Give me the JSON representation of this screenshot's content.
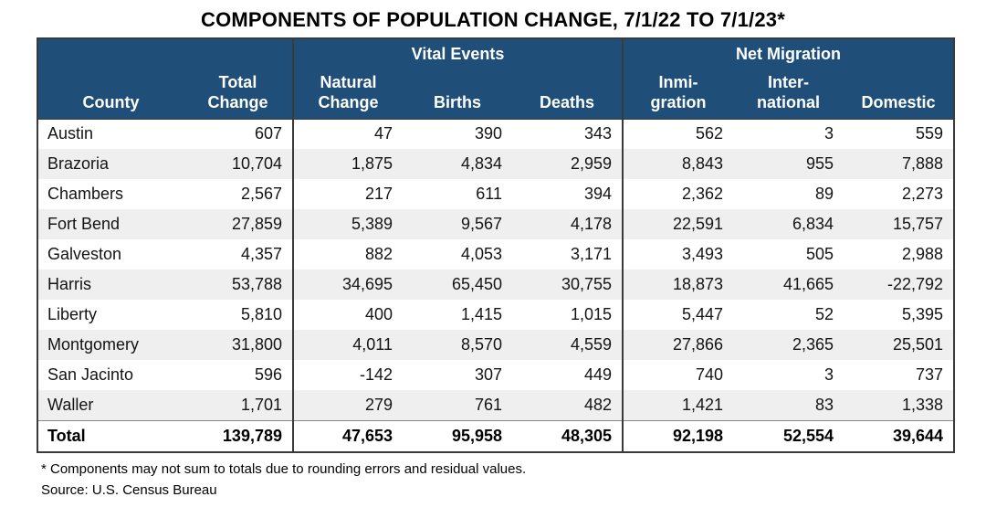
{
  "title": "COMPONENTS OF POPULATION CHANGE, 7/1/22 TO 7/1/23*",
  "colors": {
    "header_bg": "#1F4E79",
    "header_text": "#FFFFFF",
    "stripe_row": "#EFEFEF",
    "border": "#3A3A3A"
  },
  "table": {
    "group_headers": [
      "",
      "Vital Events",
      "Net Migration"
    ],
    "columns": [
      "County",
      "Total\nChange",
      "Natural\nChange",
      "Births",
      "Deaths",
      "Inmi-\ngration",
      "Inter-\nnational",
      "Domestic"
    ],
    "rows": [
      {
        "county": "Austin",
        "values": [
          "607",
          "47",
          "390",
          "343",
          "562",
          "3",
          "559"
        ]
      },
      {
        "county": "Brazoria",
        "values": [
          "10,704",
          "1,875",
          "4,834",
          "2,959",
          "8,843",
          "955",
          "7,888"
        ]
      },
      {
        "county": "Chambers",
        "values": [
          "2,567",
          "217",
          "611",
          "394",
          "2,362",
          "89",
          "2,273"
        ]
      },
      {
        "county": "Fort Bend",
        "values": [
          "27,859",
          "5,389",
          "9,567",
          "4,178",
          "22,591",
          "6,834",
          "15,757"
        ]
      },
      {
        "county": "Galveston",
        "values": [
          "4,357",
          "882",
          "4,053",
          "3,171",
          "3,493",
          "505",
          "2,988"
        ]
      },
      {
        "county": "Harris",
        "values": [
          "53,788",
          "34,695",
          "65,450",
          "30,755",
          "18,873",
          "41,665",
          "-22,792"
        ]
      },
      {
        "county": "Liberty",
        "values": [
          "5,810",
          "400",
          "1,415",
          "1,015",
          "5,447",
          "52",
          "5,395"
        ]
      },
      {
        "county": "Montgomery",
        "values": [
          "31,800",
          "4,011",
          "8,570",
          "4,559",
          "27,866",
          "2,365",
          "25,501"
        ]
      },
      {
        "county": "San Jacinto",
        "values": [
          "596",
          "-142",
          "307",
          "449",
          "740",
          "3",
          "737"
        ]
      },
      {
        "county": "Waller",
        "values": [
          "1,701",
          "279",
          "761",
          "482",
          "1,421",
          "83",
          "1,338"
        ]
      }
    ],
    "total_row": {
      "county": "Total",
      "values": [
        "139,789",
        "47,653",
        "95,958",
        "48,305",
        "92,198",
        "52,554",
        "39,644"
      ]
    }
  },
  "footnotes": [
    "* Components may not sum to totals due to rounding errors and residual values.",
    "Source: U.S. Census Bureau"
  ],
  "chart_data": {
    "type": "table",
    "title": "COMPONENTS OF POPULATION CHANGE, 7/1/22 TO 7/1/23*",
    "row_header": "County",
    "categories": [
      "Austin",
      "Brazoria",
      "Chambers",
      "Fort Bend",
      "Galveston",
      "Harris",
      "Liberty",
      "Montgomery",
      "San Jacinto",
      "Waller",
      "Total"
    ],
    "series": [
      {
        "name": "Total Change",
        "group": "",
        "values": [
          607,
          10704,
          2567,
          27859,
          4357,
          53788,
          5810,
          31800,
          596,
          1701,
          139789
        ]
      },
      {
        "name": "Natural Change",
        "group": "Vital Events",
        "values": [
          47,
          1875,
          217,
          5389,
          882,
          34695,
          400,
          4011,
          -142,
          279,
          47653
        ]
      },
      {
        "name": "Births",
        "group": "Vital Events",
        "values": [
          390,
          4834,
          611,
          9567,
          4053,
          65450,
          1415,
          8570,
          307,
          761,
          95958
        ]
      },
      {
        "name": "Deaths",
        "group": "Vital Events",
        "values": [
          343,
          2959,
          394,
          4178,
          3171,
          30755,
          1015,
          4559,
          449,
          482,
          48305
        ]
      },
      {
        "name": "Inmigration",
        "group": "Net Migration",
        "values": [
          562,
          8843,
          2362,
          22591,
          3493,
          18873,
          5447,
          27866,
          740,
          1421,
          92198
        ]
      },
      {
        "name": "International",
        "group": "Net Migration",
        "values": [
          3,
          955,
          89,
          6834,
          505,
          41665,
          52,
          2365,
          3,
          83,
          52554
        ]
      },
      {
        "name": "Domestic",
        "group": "Net Migration",
        "values": [
          559,
          7888,
          2273,
          15757,
          2988,
          -22792,
          5395,
          25501,
          737,
          1338,
          39644
        ]
      }
    ]
  }
}
